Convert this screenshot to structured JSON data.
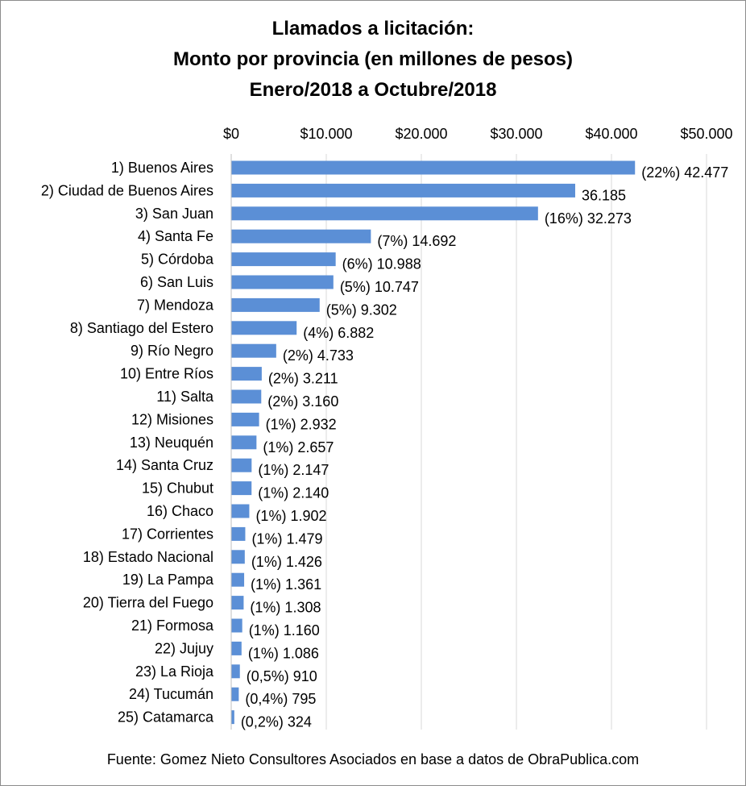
{
  "chart_data": {
    "type": "bar",
    "orientation": "horizontal",
    "title_lines": [
      "Llamados a licitación:",
      "Monto por provincia (en millones de pesos)",
      "Enero/2018 a Octubre/2018"
    ],
    "source": "Fuente: Gomez Nieto Consultores Asociados en base a datos de ObraPublica.com",
    "xlim": [
      0,
      50000
    ],
    "x_ticks": [
      0,
      10000,
      20000,
      30000,
      40000,
      50000
    ],
    "x_tick_labels": [
      "$0",
      "$10.000",
      "$20.000",
      "$30.000",
      "$40.000",
      "$50.000"
    ],
    "x_axis_position": "top",
    "grid": true,
    "bar_color": "#5b8fd6",
    "grid_color": "#d9d9d9",
    "categories": [
      "1) Buenos Aires",
      "2) Ciudad de Buenos Aires",
      "3) San Juan",
      "4) Santa Fe",
      "5) Córdoba",
      "6) San Luis",
      "7) Mendoza",
      "8) Santiago del Estero",
      "9) Río Negro",
      "10) Entre Ríos",
      "11) Salta",
      "12) Misiones",
      "13) Neuquén",
      "14) Santa Cruz",
      "15) Chubut",
      "16) Chaco",
      "17) Corrientes",
      "18) Estado Nacional",
      "19) La Pampa",
      "20) Tierra del Fuego",
      "21) Formosa",
      "22) Jujuy",
      "23) La Rioja",
      "24) Tucumán",
      "25) Catamarca"
    ],
    "values": [
      42477,
      36185,
      32273,
      14692,
      10988,
      10747,
      9302,
      6882,
      4733,
      3211,
      3160,
      2932,
      2657,
      2147,
      2140,
      1902,
      1479,
      1426,
      1361,
      1308,
      1160,
      1086,
      910,
      795,
      324
    ],
    "data_labels": [
      "(22%) 42.477",
      "36.185",
      "(16%) 32.273",
      "(7%) 14.692",
      "(6%) 10.988",
      "(5%) 10.747",
      "(5%) 9.302",
      "(4%) 6.882",
      "(2%) 4.733",
      "(2%) 3.211",
      "(2%) 3.160",
      "(1%) 2.932",
      "(1%) 2.657",
      "(1%) 2.147",
      "(1%) 2.140",
      "(1%) 1.902",
      "(1%) 1.479",
      "(1%) 1.426",
      "(1%) 1.361",
      "(1%) 1.308",
      "(1%) 1.160",
      "(1%) 1.086",
      "(0,5%) 910",
      "(0,4%) 795",
      "(0,2%) 324"
    ]
  }
}
